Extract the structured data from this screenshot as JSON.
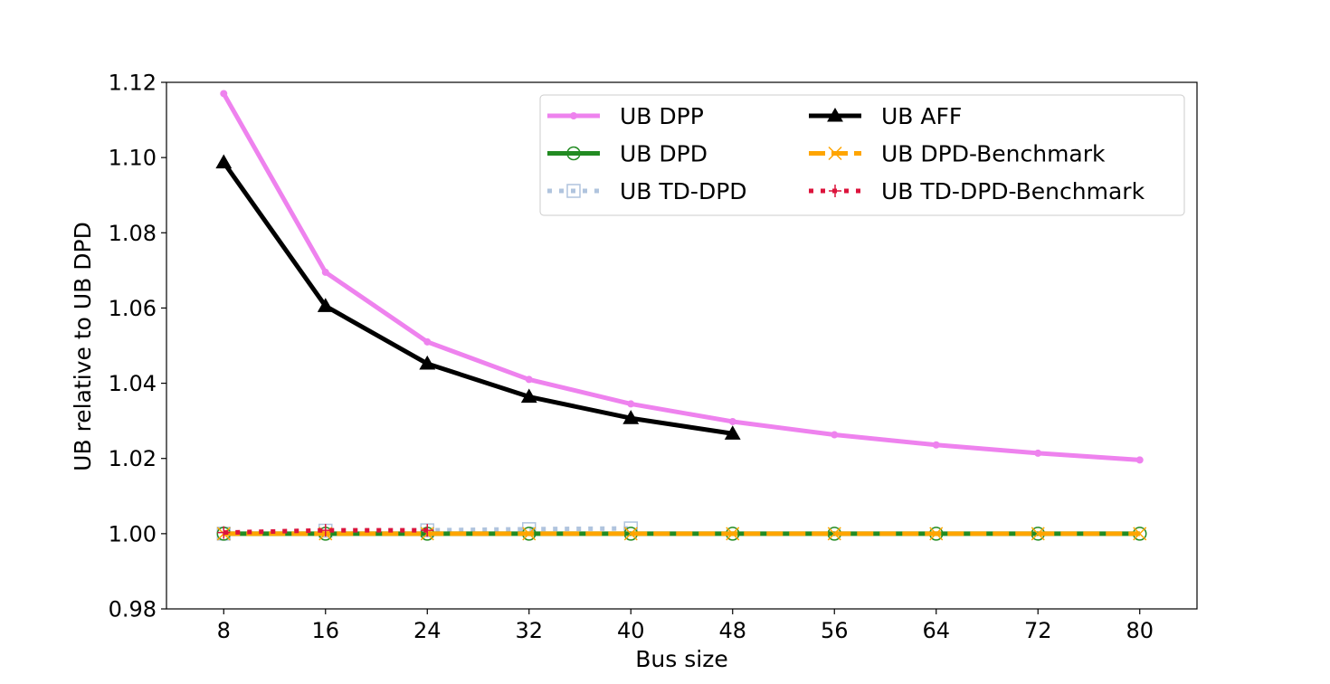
{
  "chart_data": {
    "type": "line",
    "title": "",
    "xlabel": "Bus size",
    "ylabel": "UB relative to UB DPD",
    "xlim": [
      3.5,
      84.5
    ],
    "ylim": [
      0.98,
      1.12
    ],
    "xticks": [
      8,
      16,
      24,
      32,
      40,
      48,
      56,
      64,
      72,
      80
    ],
    "xtick_labels": [
      "8",
      "16",
      "24",
      "32",
      "40",
      "48",
      "56",
      "64",
      "72",
      "80"
    ],
    "yticks": [
      0.98,
      1.0,
      1.02,
      1.04,
      1.06,
      1.08,
      1.1,
      1.12
    ],
    "ytick_labels": [
      "0.98",
      "1.00",
      "1.02",
      "1.04",
      "1.06",
      "1.08",
      "1.10",
      "1.12"
    ],
    "grid": false,
    "legend_position": "top-right",
    "legend_columns": 2,
    "series": [
      {
        "name": "UB DPP",
        "color": "#ee82ee",
        "line_style": "solid",
        "line_width": 5,
        "marker": "dot",
        "x": [
          8,
          16,
          24,
          32,
          40,
          48,
          56,
          64,
          72,
          80
        ],
        "values": [
          1.117,
          1.0695,
          1.051,
          1.041,
          1.0345,
          1.0298,
          1.0263,
          1.0236,
          1.0214,
          1.0196
        ]
      },
      {
        "name": "UB DPD",
        "color": "#228b22",
        "line_style": "solid",
        "line_width": 5,
        "marker": "open-circle",
        "x": [
          8,
          16,
          24,
          32,
          40,
          48,
          56,
          64,
          72,
          80
        ],
        "values": [
          1.0,
          1.0,
          1.0,
          1.0,
          1.0,
          1.0,
          1.0,
          1.0,
          1.0,
          1.0
        ]
      },
      {
        "name": "UB TD-DPD",
        "color": "#b0c4de",
        "line_style": "dotted",
        "line_width": 5,
        "marker": "open-square",
        "x": [
          8,
          16,
          24,
          32,
          40
        ],
        "values": [
          1.0,
          1.0008,
          1.0009,
          1.0012,
          1.0014
        ]
      },
      {
        "name": "UB AFF",
        "color": "#000000",
        "line_style": "solid",
        "line_width": 5,
        "marker": "triangle",
        "x": [
          8,
          16,
          24,
          32,
          40,
          48
        ],
        "values": [
          1.0987,
          1.0605,
          1.0452,
          1.0364,
          1.0307,
          1.0266
        ]
      },
      {
        "name": "UB DPD-Benchmark",
        "color": "#ffa500",
        "line_style": "dashed",
        "line_width": 5,
        "marker": "x",
        "x": [
          8,
          16,
          24,
          32,
          40,
          48,
          56,
          64,
          72,
          80
        ],
        "values": [
          1.0,
          1.0,
          1.0,
          1.0,
          1.0,
          1.0,
          1.0,
          1.0,
          1.0,
          1.0
        ]
      },
      {
        "name": "UB TD-DPD-Benchmark",
        "color": "#dc143c",
        "line_style": "dotted",
        "line_width": 5,
        "marker": "plus",
        "x": [
          8,
          16,
          24
        ],
        "values": [
          1.0003,
          1.0009,
          1.0009
        ]
      }
    ]
  }
}
